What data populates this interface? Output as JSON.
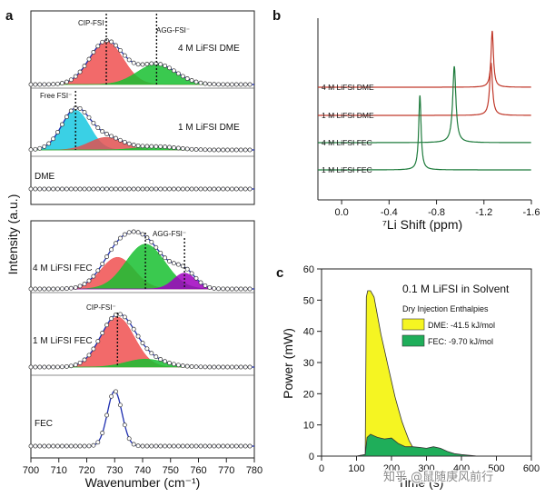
{
  "chart_data": [
    {
      "panel": "a",
      "type": "line",
      "xlabel": "Wavenumber (cm⁻¹)",
      "ylabel": "Intensity (a.u.)",
      "xlim": [
        700,
        780
      ],
      "xticks": [
        "700",
        "710",
        "720",
        "730",
        "740",
        "750",
        "760",
        "770",
        "780"
      ],
      "upper_group": {
        "spectra": [
          {
            "label": "4 M LiFSI DME",
            "peaks": [
              {
                "name": "CIP-FSI⁻",
                "center": 727,
                "height": 0.95,
                "color": "#f05050"
              },
              {
                "name": "AGG-FSI⁻",
                "center": 745,
                "height": 0.45,
                "color": "#18c030"
              }
            ]
          },
          {
            "label": "1 M LiFSI DME",
            "peaks": [
              {
                "name": "Free FSI⁻",
                "center": 716,
                "height": 0.95,
                "color": "#18c8e0"
              },
              {
                "name": "CIP-FSI⁻",
                "center": 727,
                "height": 0.3,
                "color": "#e05050"
              },
              {
                "name": "AGG-FSI⁻",
                "center": 745,
                "height": 0.08,
                "color": "#18c030"
              }
            ]
          },
          {
            "label": "DME",
            "peaks": []
          }
        ],
        "annotations": [
          "CIP-FSI⁻",
          "AGG-FSI⁻",
          "Free FSI⁻"
        ]
      },
      "lower_group": {
        "spectra": [
          {
            "label": "4 M LiFSI FEC",
            "peaks": [
              {
                "name": "CIP-FSI⁻",
                "center": 731,
                "height": 0.6,
                "color": "#f05050"
              },
              {
                "name": "AGG-FSI⁻",
                "center": 741,
                "height": 0.85,
                "color": "#18c030"
              },
              {
                "name": "",
                "center": 755,
                "height": 0.3,
                "color": "#a000c0"
              }
            ]
          },
          {
            "label": "1 M LiFSI FEC",
            "peaks": [
              {
                "name": "CIP-FSI⁻",
                "center": 731,
                "height": 0.95,
                "color": "#f05050"
              },
              {
                "name": "AGG-FSI⁻",
                "center": 741,
                "height": 0.15,
                "color": "#18c030"
              }
            ]
          },
          {
            "label": "FEC",
            "peaks": [
              {
                "name": "",
                "center": 730,
                "height": 0.95,
                "color": "#2030c0"
              }
            ]
          }
        ],
        "annotations": [
          "AGG-FSI⁻",
          "CIP-FSI⁻"
        ]
      }
    },
    {
      "panel": "b",
      "type": "line",
      "xlabel": "⁷Li Shift (ppm)",
      "xlim": [
        0.2,
        -1.6
      ],
      "xticks": [
        "0.0",
        "-0.4",
        "-0.8",
        "-1.2",
        "-1.6"
      ],
      "series": [
        {
          "name": "4 M LiFSI DME",
          "peak_ppm": -1.27,
          "color": "#c0392b"
        },
        {
          "name": "1 M LiFSI DME",
          "peak_ppm": -1.26,
          "color": "#c0392b"
        },
        {
          "name": "4 M LiFSI FEC",
          "peak_ppm": -0.95,
          "color": "#1e7b3c"
        },
        {
          "name": "1 M LiFSI FEC",
          "peak_ppm": -0.66,
          "color": "#1e7b3c"
        }
      ]
    },
    {
      "panel": "c",
      "type": "area",
      "title": "0.1 M LiFSI in Solvent",
      "subtitle": "Dry Injection Enthalpies",
      "xlabel": "Time (s)",
      "ylabel": "Power (mW)",
      "xlim": [
        0,
        600
      ],
      "ylim": [
        0,
        60
      ],
      "xticks": [
        "0",
        "100",
        "200",
        "300",
        "400",
        "500",
        "600"
      ],
      "yticks": [
        "0",
        "10",
        "20",
        "30",
        "40",
        "50",
        "60"
      ],
      "series": [
        {
          "name": "DME",
          "legend": "DME: -41.5 kJ/mol",
          "color": "#f5f522",
          "x": [
            100,
            125,
            128,
            132,
            140,
            150,
            160,
            170,
            180,
            190,
            200,
            210,
            220,
            230,
            240,
            250,
            260,
            270,
            300
          ],
          "y": [
            0,
            0.5,
            51,
            53,
            53,
            51,
            45,
            39,
            34,
            29,
            24,
            19,
            15,
            11,
            8,
            5,
            3,
            1.5,
            0.5
          ]
        },
        {
          "name": "FEC",
          "legend": "FEC: -9.70 kJ/mol",
          "color": "#1fae5a",
          "x": [
            100,
            125,
            130,
            140,
            150,
            160,
            180,
            200,
            220,
            240,
            260,
            280,
            300,
            320,
            340,
            360,
            380,
            400,
            420,
            440
          ],
          "y": [
            0,
            0.5,
            6,
            7,
            6.5,
            6,
            5.5,
            5.8,
            4,
            3,
            3,
            2.8,
            2.5,
            3,
            2.5,
            1.5,
            0.8,
            0.5,
            0.3,
            0.1
          ]
        }
      ]
    }
  ],
  "labels": {
    "a": "a",
    "b": "b",
    "c": "c"
  },
  "watermark": "知乎 @鼠随庚风前行"
}
